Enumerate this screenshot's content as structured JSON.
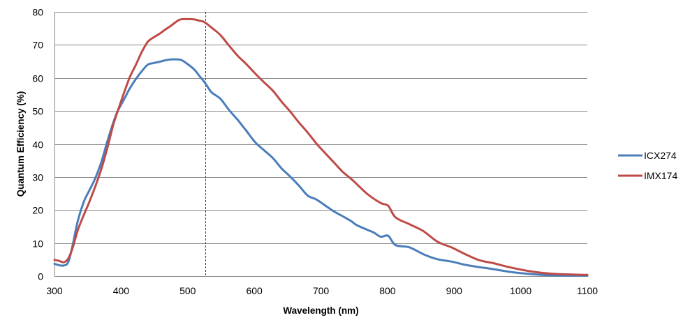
{
  "chart_data": {
    "type": "line",
    "title": "",
    "xlabel": "Wavelength (nm)",
    "ylabel": "Quantum Efficiency (%)",
    "xlim": [
      300,
      1100
    ],
    "ylim": [
      0,
      80
    ],
    "x_ticks": [
      300,
      400,
      500,
      600,
      700,
      800,
      900,
      1000,
      1100
    ],
    "y_ticks": [
      0,
      10,
      20,
      30,
      40,
      50,
      60,
      70,
      80
    ],
    "grid": "horizontal",
    "legend_position": "right",
    "reference_line": {
      "x": 526,
      "style": "dashed"
    },
    "series": [
      {
        "name": "ICX274",
        "color": "#4a7ebb",
        "points": [
          [
            300,
            3.7
          ],
          [
            307,
            3.3
          ],
          [
            314,
            3.2
          ],
          [
            321,
            4.4
          ],
          [
            328,
            10
          ],
          [
            335,
            16.7
          ],
          [
            344,
            22.5
          ],
          [
            352,
            25.8
          ],
          [
            361,
            29.5
          ],
          [
            370,
            34.3
          ],
          [
            379,
            40.5
          ],
          [
            388,
            46.3
          ],
          [
            395,
            50
          ],
          [
            405,
            53.7
          ],
          [
            413,
            56.8
          ],
          [
            422,
            59.6
          ],
          [
            431,
            62
          ],
          [
            440,
            64.0
          ],
          [
            449,
            64.5
          ],
          [
            458,
            64.9
          ],
          [
            466,
            65.3
          ],
          [
            475,
            65.6
          ],
          [
            489,
            65.5
          ],
          [
            499,
            64.3
          ],
          [
            510,
            62.5
          ],
          [
            518,
            60.5
          ],
          [
            523,
            59.3
          ],
          [
            528,
            57.9
          ],
          [
            536,
            55.6
          ],
          [
            549,
            53.7
          ],
          [
            562,
            50.3
          ],
          [
            575,
            47.3
          ],
          [
            588,
            44
          ],
          [
            601,
            40.6
          ],
          [
            614,
            38.2
          ],
          [
            628,
            35.7
          ],
          [
            641,
            32.6
          ],
          [
            654,
            30.1
          ],
          [
            667,
            27.4
          ],
          [
            680,
            24.4
          ],
          [
            693,
            23.2
          ],
          [
            707,
            21.3
          ],
          [
            720,
            19.5
          ],
          [
            733,
            18.1
          ],
          [
            745,
            16.7
          ],
          [
            754,
            15.4
          ],
          [
            770,
            14.0
          ],
          [
            780,
            13.1
          ],
          [
            790,
            11.9
          ],
          [
            801,
            12.2
          ],
          [
            812,
            9.4
          ],
          [
            833,
            8.7
          ],
          [
            854,
            6.6
          ],
          [
            875,
            5.1
          ],
          [
            896,
            4.4
          ],
          [
            917,
            3.4
          ],
          [
            938,
            2.7
          ],
          [
            959,
            2.1
          ],
          [
            985,
            1.25
          ],
          [
            1016,
            0.6
          ],
          [
            1048,
            0.2
          ],
          [
            1100,
            0.1
          ]
        ]
      },
      {
        "name": "IMX174",
        "color": "#be4b48",
        "points": [
          [
            300,
            4.9
          ],
          [
            307,
            4.6
          ],
          [
            314,
            4.2
          ],
          [
            321,
            5.4
          ],
          [
            328,
            9
          ],
          [
            335,
            13.9
          ],
          [
            344,
            18.5
          ],
          [
            352,
            22.3
          ],
          [
            361,
            27
          ],
          [
            370,
            32.2
          ],
          [
            379,
            38.5
          ],
          [
            388,
            45.6
          ],
          [
            395,
            50
          ],
          [
            405,
            55.8
          ],
          [
            413,
            60.2
          ],
          [
            422,
            63.9
          ],
          [
            431,
            67.8
          ],
          [
            440,
            70.9
          ],
          [
            449,
            72.3
          ],
          [
            458,
            73.4
          ],
          [
            466,
            74.6
          ],
          [
            475,
            75.8
          ],
          [
            482,
            76.9
          ],
          [
            489,
            77.7
          ],
          [
            500,
            77.8
          ],
          [
            510,
            77.7
          ],
          [
            518,
            77.3
          ],
          [
            523,
            77.1
          ],
          [
            528,
            76.5
          ],
          [
            536,
            75.2
          ],
          [
            549,
            73.0
          ],
          [
            562,
            69.8
          ],
          [
            575,
            66.7
          ],
          [
            588,
            64.2
          ],
          [
            601,
            61.4
          ],
          [
            614,
            58.8
          ],
          [
            628,
            56.1
          ],
          [
            641,
            52.8
          ],
          [
            654,
            49.8
          ],
          [
            667,
            46.5
          ],
          [
            680,
            43.5
          ],
          [
            693,
            40.2
          ],
          [
            707,
            37.1
          ],
          [
            720,
            34.3
          ],
          [
            733,
            31.5
          ],
          [
            749,
            28.8
          ],
          [
            770,
            24.8
          ],
          [
            790,
            22.1
          ],
          [
            801,
            21.3
          ],
          [
            812,
            17.8
          ],
          [
            833,
            15.7
          ],
          [
            854,
            13.6
          ],
          [
            875,
            10.4
          ],
          [
            896,
            8.7
          ],
          [
            917,
            6.6
          ],
          [
            938,
            4.8
          ],
          [
            959,
            3.9
          ],
          [
            985,
            2.6
          ],
          [
            1016,
            1.4
          ],
          [
            1048,
            0.7
          ],
          [
            1100,
            0.35
          ]
        ]
      }
    ]
  }
}
